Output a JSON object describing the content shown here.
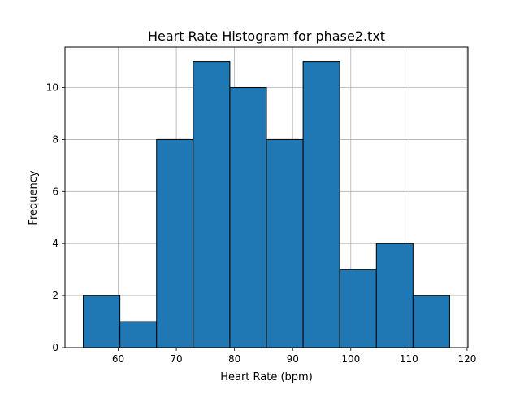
{
  "chart_data": {
    "type": "bar",
    "subtype": "histogram",
    "title": "Heart Rate Histogram for phase2.txt",
    "xlabel": "Heart Rate (bpm)",
    "ylabel": "Frequency",
    "bins": [
      {
        "start": 54.0,
        "end": 60.3,
        "count": 2
      },
      {
        "start": 60.3,
        "end": 66.6,
        "count": 1
      },
      {
        "start": 66.6,
        "end": 72.9,
        "count": 8
      },
      {
        "start": 72.9,
        "end": 79.2,
        "count": 11
      },
      {
        "start": 79.2,
        "end": 85.5,
        "count": 10
      },
      {
        "start": 85.5,
        "end": 91.8,
        "count": 8
      },
      {
        "start": 91.8,
        "end": 98.1,
        "count": 11
      },
      {
        "start": 98.1,
        "end": 104.4,
        "count": 3
      },
      {
        "start": 104.4,
        "end": 110.7,
        "count": 4
      },
      {
        "start": 110.7,
        "end": 117.0,
        "count": 2
      }
    ],
    "xlim": [
      50.85,
      120.15
    ],
    "ylim": [
      0,
      11.55
    ],
    "xticks": [
      60,
      70,
      80,
      90,
      100,
      110,
      120
    ],
    "yticks": [
      0,
      2,
      4,
      6,
      8,
      10
    ],
    "grid": true,
    "colors": {
      "bar": "#1f77b4",
      "edge": "#000000",
      "grid": "#b0b0b0",
      "axes": "#000000"
    }
  }
}
